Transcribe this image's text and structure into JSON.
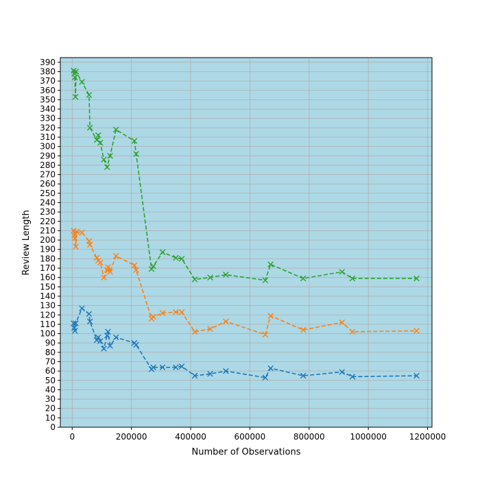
{
  "chart_data": {
    "type": "line",
    "title": "",
    "xlabel": "Number of Observations",
    "ylabel": "Review Length",
    "xlim": [
      -40000,
      1215000
    ],
    "ylim": [
      0,
      395
    ],
    "xticks": [
      0,
      200000,
      400000,
      600000,
      800000,
      1000000,
      1200000
    ],
    "yticks": [
      0,
      10,
      20,
      30,
      40,
      50,
      60,
      70,
      80,
      90,
      100,
      110,
      120,
      130,
      140,
      150,
      160,
      170,
      180,
      190,
      200,
      210,
      220,
      230,
      240,
      250,
      260,
      270,
      280,
      290,
      300,
      310,
      320,
      330,
      340,
      350,
      360,
      370,
      380,
      390
    ],
    "grid": true,
    "background": "#add8e6",
    "line_style": "dashed",
    "marker": "x",
    "series": [
      {
        "color": "#1f77b4",
        "points": [
          [
            5000,
            111
          ],
          [
            7000,
            106
          ],
          [
            9000,
            103
          ],
          [
            12000,
            111
          ],
          [
            33000,
            127
          ],
          [
            57000,
            121
          ],
          [
            60000,
            113
          ],
          [
            83000,
            93
          ],
          [
            88000,
            96
          ],
          [
            95000,
            92
          ],
          [
            107000,
            84
          ],
          [
            118000,
            98
          ],
          [
            121000,
            102
          ],
          [
            128000,
            87
          ],
          [
            148000,
            96
          ],
          [
            210000,
            90
          ],
          [
            216000,
            88
          ],
          [
            268000,
            62
          ],
          [
            274000,
            64
          ],
          [
            305000,
            64
          ],
          [
            350000,
            64
          ],
          [
            370000,
            65
          ],
          [
            414000,
            55
          ],
          [
            466000,
            57
          ],
          [
            519000,
            60
          ],
          [
            652000,
            53
          ],
          [
            670000,
            63
          ],
          [
            780000,
            55
          ],
          [
            911000,
            59
          ],
          [
            946000,
            54
          ],
          [
            1163000,
            55
          ]
        ]
      },
      {
        "color": "#ff7f0e",
        "points": [
          [
            5000,
            210
          ],
          [
            7000,
            205
          ],
          [
            9000,
            202
          ],
          [
            12000,
            193
          ],
          [
            14000,
            209
          ],
          [
            33000,
            208
          ],
          [
            57000,
            199
          ],
          [
            60000,
            195
          ],
          [
            83000,
            181
          ],
          [
            88000,
            178
          ],
          [
            95000,
            176
          ],
          [
            107000,
            160
          ],
          [
            118000,
            168
          ],
          [
            121000,
            171
          ],
          [
            128000,
            166
          ],
          [
            148000,
            183
          ],
          [
            210000,
            173
          ],
          [
            216000,
            168
          ],
          [
            268000,
            116
          ],
          [
            274000,
            118
          ],
          [
            305000,
            122
          ],
          [
            350000,
            123
          ],
          [
            370000,
            123
          ],
          [
            414000,
            102
          ],
          [
            466000,
            105
          ],
          [
            519000,
            113
          ],
          [
            652000,
            99
          ],
          [
            670000,
            119
          ],
          [
            780000,
            104
          ],
          [
            911000,
            112
          ],
          [
            946000,
            102
          ],
          [
            1163000,
            103
          ]
        ]
      },
      {
        "color": "#2ca02c",
        "points": [
          [
            5000,
            381
          ],
          [
            7000,
            378
          ],
          [
            9000,
            374
          ],
          [
            11000,
            353
          ],
          [
            13000,
            380
          ],
          [
            33000,
            369
          ],
          [
            57000,
            355
          ],
          [
            60000,
            320
          ],
          [
            83000,
            307
          ],
          [
            88000,
            312
          ],
          [
            95000,
            304
          ],
          [
            107000,
            286
          ],
          [
            118000,
            278
          ],
          [
            128000,
            290
          ],
          [
            148000,
            318
          ],
          [
            210000,
            306
          ],
          [
            216000,
            292
          ],
          [
            268000,
            169
          ],
          [
            274000,
            172
          ],
          [
            305000,
            187
          ],
          [
            350000,
            181
          ],
          [
            370000,
            180
          ],
          [
            414000,
            158
          ],
          [
            466000,
            160
          ],
          [
            519000,
            163
          ],
          [
            652000,
            157
          ],
          [
            670000,
            174
          ],
          [
            780000,
            159
          ],
          [
            911000,
            166
          ],
          [
            946000,
            159
          ],
          [
            1163000,
            159
          ]
        ]
      }
    ]
  }
}
